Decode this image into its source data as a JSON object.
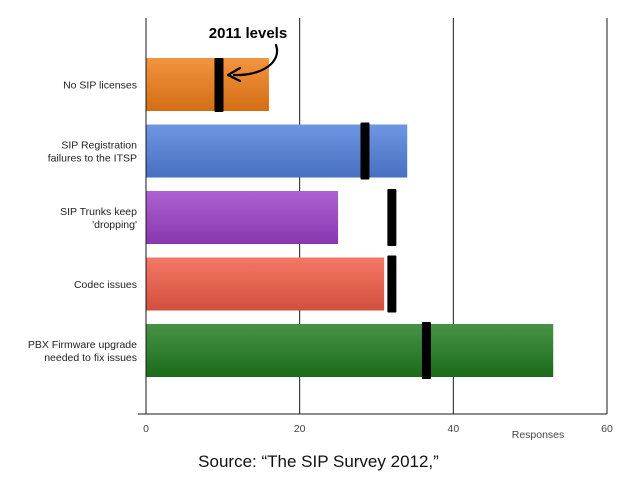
{
  "chart_data": {
    "type": "bar",
    "orientation": "horizontal",
    "categories": [
      "No SIP licenses",
      "SIP Registration failures to the ITSP",
      "SIP Trunks keep 'dropping'",
      "Codec issues",
      "PBX Firmware upgrade needed to fix issues"
    ],
    "category_lines": [
      [
        "No SIP licenses"
      ],
      [
        "SIP Registration",
        "failures to the ITSP"
      ],
      [
        "SIP Trunks keep",
        "'dropping'"
      ],
      [
        "Codec issues"
      ],
      [
        "PBX Firmware upgrade",
        "needed to fix issues"
      ]
    ],
    "series": [
      {
        "values": [
          16,
          34,
          25,
          31,
          53
        ]
      },
      {
        "name": "2011 levels",
        "values": [
          9.5,
          28.5,
          32,
          32,
          36.5
        ]
      }
    ],
    "xlim": [
      0,
      60
    ],
    "xticks": [
      0,
      20,
      40,
      60
    ],
    "xlabel": "Responses",
    "ylabel": "",
    "grid": true,
    "annotation": "2011 levels",
    "bar_colors": [
      "#f07d16",
      "#4f7fdc",
      "#9b3fc7",
      "#f05a45",
      "#1f7a1f"
    ],
    "marker_color": "#000000"
  },
  "caption": "Source: “The SIP Survey 2012,”"
}
